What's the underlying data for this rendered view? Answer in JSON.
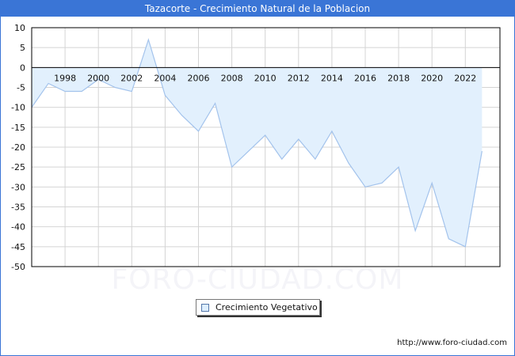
{
  "title": "Tazacorte - Crecimiento Natural de la Poblacion",
  "watermark": "FORO-CIUDAD.COM",
  "url": "http://www.foro-ciudad.com",
  "legend": {
    "label": "Crecimiento Vegetativo"
  },
  "colors": {
    "title_bg": "#3a75d6",
    "fill": "#e2f0fd",
    "line": "#a3c3ec",
    "grid": "#d4d4d4"
  },
  "chart_data": {
    "type": "area",
    "title": "Tazacorte - Crecimiento Natural de la Poblacion",
    "xlabel": "",
    "ylabel": "",
    "ylim": [
      -50,
      10
    ],
    "yticks": [
      10,
      5,
      0,
      -5,
      -10,
      -15,
      -20,
      -25,
      -30,
      -35,
      -40,
      -45,
      -50
    ],
    "xticks": [
      "1998",
      "2000",
      "2002",
      "2004",
      "2006",
      "2008",
      "2010",
      "2012",
      "2014",
      "2016",
      "2018",
      "2020",
      "2022"
    ],
    "grid": true,
    "legend_position": "bottom",
    "x": [
      1996,
      1997,
      1998,
      1999,
      2000,
      2001,
      2002,
      2003,
      2004,
      2005,
      2006,
      2007,
      2008,
      2009,
      2010,
      2011,
      2012,
      2013,
      2014,
      2015,
      2016,
      2017,
      2018,
      2019,
      2020,
      2021,
      2022,
      2023
    ],
    "series": [
      {
        "name": "Crecimiento Vegetativo",
        "values": [
          -10,
          -4,
          -6,
          -6,
          -3,
          -5,
          -6,
          7,
          -7,
          -12,
          -16,
          -9,
          -25,
          -21,
          -17,
          -23,
          -18,
          -23,
          -16,
          -24,
          -30,
          -29,
          -25,
          -41,
          -29,
          -43,
          -45,
          -21
        ]
      }
    ]
  }
}
